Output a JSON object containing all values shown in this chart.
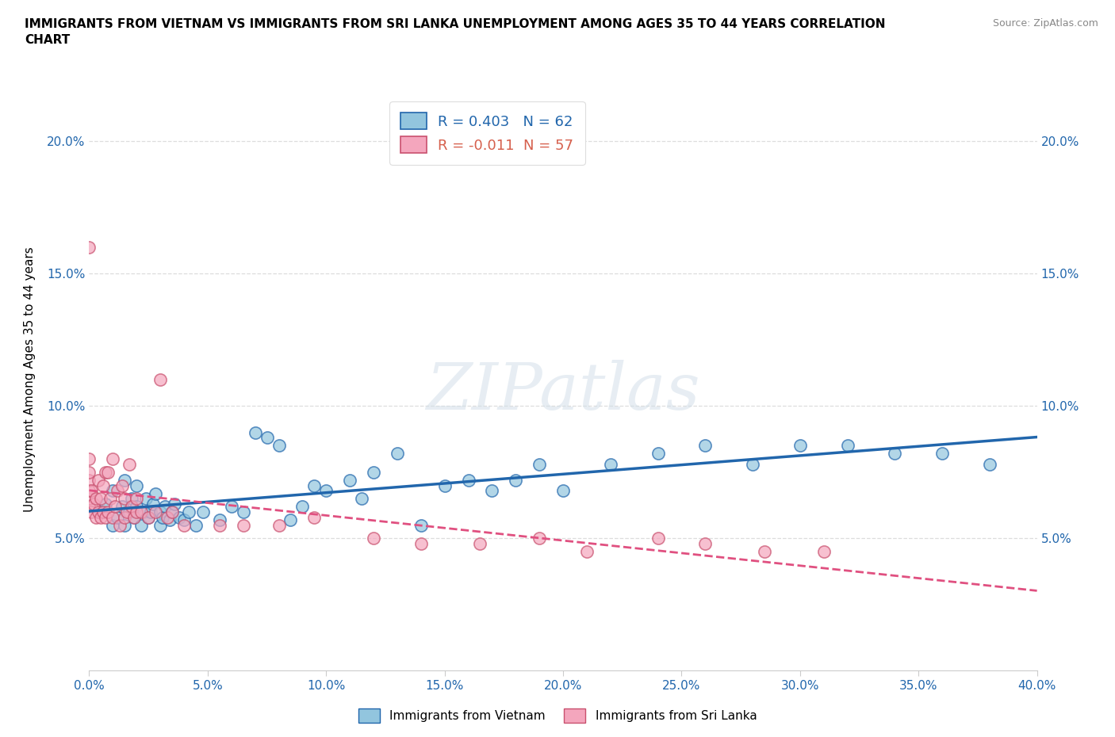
{
  "title": "IMMIGRANTS FROM VIETNAM VS IMMIGRANTS FROM SRI LANKA UNEMPLOYMENT AMONG AGES 35 TO 44 YEARS CORRELATION\nCHART",
  "source": "Source: ZipAtlas.com",
  "ylabel": "Unemployment Among Ages 35 to 44 years",
  "xlim": [
    0.0,
    0.4
  ],
  "ylim": [
    0.0,
    0.22
  ],
  "xticks": [
    0.0,
    0.05,
    0.1,
    0.15,
    0.2,
    0.25,
    0.3,
    0.35,
    0.4
  ],
  "yticks": [
    0.05,
    0.1,
    0.15,
    0.2
  ],
  "ytick_labels": [
    "5.0%",
    "10.0%",
    "15.0%",
    "20.0%"
  ],
  "xtick_labels": [
    "0.0%",
    "5.0%",
    "10.0%",
    "15.0%",
    "20.0%",
    "25.0%",
    "30.0%",
    "35.0%",
    "40.0%"
  ],
  "color_vietnam": "#92c5de",
  "color_srilanka": "#f4a6bd",
  "trend_color_vietnam": "#2166ac",
  "trend_color_srilanka": "#d6604d",
  "R_vietnam": 0.403,
  "N_vietnam": 62,
  "R_srilanka": -0.011,
  "N_srilanka": 57,
  "legend_label_vietnam": "Immigrants from Vietnam",
  "legend_label_srilanka": "Immigrants from Sri Lanka",
  "watermark": "ZIPatlas",
  "vietnam_x": [
    0.005,
    0.007,
    0.01,
    0.01,
    0.012,
    0.014,
    0.015,
    0.015,
    0.017,
    0.018,
    0.019,
    0.02,
    0.02,
    0.022,
    0.023,
    0.024,
    0.025,
    0.026,
    0.027,
    0.028,
    0.03,
    0.03,
    0.031,
    0.032,
    0.034,
    0.035,
    0.036,
    0.038,
    0.04,
    0.042,
    0.045,
    0.048,
    0.055,
    0.06,
    0.065,
    0.07,
    0.075,
    0.08,
    0.085,
    0.09,
    0.095,
    0.1,
    0.11,
    0.115,
    0.12,
    0.13,
    0.14,
    0.15,
    0.16,
    0.17,
    0.18,
    0.19,
    0.2,
    0.22,
    0.24,
    0.26,
    0.28,
    0.3,
    0.32,
    0.34,
    0.36,
    0.38
  ],
  "vietnam_y": [
    0.06,
    0.063,
    0.055,
    0.068,
    0.058,
    0.062,
    0.055,
    0.072,
    0.06,
    0.065,
    0.058,
    0.062,
    0.07,
    0.055,
    0.06,
    0.065,
    0.058,
    0.06,
    0.063,
    0.067,
    0.055,
    0.06,
    0.058,
    0.062,
    0.057,
    0.06,
    0.063,
    0.058,
    0.057,
    0.06,
    0.055,
    0.06,
    0.057,
    0.062,
    0.06,
    0.09,
    0.088,
    0.085,
    0.057,
    0.062,
    0.07,
    0.068,
    0.072,
    0.065,
    0.075,
    0.082,
    0.055,
    0.07,
    0.072,
    0.068,
    0.072,
    0.078,
    0.068,
    0.078,
    0.082,
    0.085,
    0.078,
    0.085,
    0.085,
    0.082,
    0.082,
    0.078
  ],
  "srilanka_x": [
    0.0,
    0.0,
    0.0,
    0.0,
    0.0,
    0.0,
    0.0,
    0.001,
    0.001,
    0.002,
    0.003,
    0.003,
    0.004,
    0.004,
    0.005,
    0.005,
    0.006,
    0.006,
    0.007,
    0.007,
    0.008,
    0.008,
    0.009,
    0.01,
    0.01,
    0.011,
    0.012,
    0.013,
    0.014,
    0.015,
    0.015,
    0.016,
    0.017,
    0.018,
    0.019,
    0.02,
    0.02,
    0.022,
    0.025,
    0.028,
    0.03,
    0.033,
    0.035,
    0.04,
    0.055,
    0.065,
    0.08,
    0.095,
    0.12,
    0.14,
    0.165,
    0.19,
    0.21,
    0.24,
    0.26,
    0.285,
    0.31
  ],
  "srilanka_y": [
    0.062,
    0.065,
    0.068,
    0.072,
    0.075,
    0.08,
    0.16,
    0.06,
    0.068,
    0.063,
    0.058,
    0.065,
    0.06,
    0.072,
    0.058,
    0.065,
    0.06,
    0.07,
    0.058,
    0.075,
    0.06,
    0.075,
    0.065,
    0.058,
    0.08,
    0.062,
    0.068,
    0.055,
    0.07,
    0.058,
    0.065,
    0.06,
    0.078,
    0.062,
    0.058,
    0.06,
    0.065,
    0.06,
    0.058,
    0.06,
    0.11,
    0.058,
    0.06,
    0.055,
    0.055,
    0.055,
    0.055,
    0.058,
    0.05,
    0.048,
    0.048,
    0.05,
    0.045,
    0.05,
    0.048,
    0.045,
    0.045
  ]
}
